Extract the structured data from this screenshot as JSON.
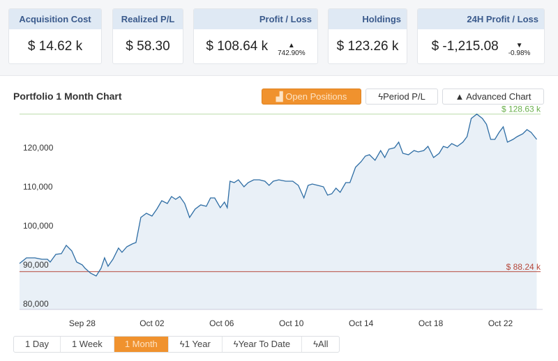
{
  "cards": [
    {
      "title": "Acquisition Cost",
      "value": "$ 14.62 k"
    },
    {
      "title": "Realized P/L",
      "value": "$ 58.30"
    },
    {
      "title": "Profit / Loss",
      "value": "$ 108.64 k",
      "change": "742.90%"
    },
    {
      "title": "Holdings",
      "value": "$ 123.26 k"
    },
    {
      "title": "24H Profit / Loss",
      "value": "$ -1,215.08",
      "change": "-0.98%"
    }
  ],
  "chart_title": "Portfolio 1 Month Chart",
  "view_buttons": {
    "open_positions": "Open Positions",
    "period_pl": "Period P/L",
    "advanced": "Advanced Chart"
  },
  "ranges": [
    "1 Day",
    "1 Week",
    "1 Month",
    "1 Year",
    "Year To Date",
    "All"
  ],
  "selected_range": "1 Month",
  "colors": {
    "accent": "#f0922e",
    "line": "#2e6da4",
    "fill": "#e9f0f7",
    "max": "#6ab04c",
    "min": "#b5473a"
  },
  "chart_data": {
    "type": "area",
    "x_unit": "days since Sep 24",
    "xticks": [
      {
        "x": 4,
        "label": "Sep 28"
      },
      {
        "x": 8,
        "label": "Oct 02"
      },
      {
        "x": 12,
        "label": "Oct 06"
      },
      {
        "x": 16,
        "label": "Oct 10"
      },
      {
        "x": 20,
        "label": "Oct 14"
      },
      {
        "x": 24,
        "label": "Oct 18"
      },
      {
        "x": 28,
        "label": "Oct 22"
      }
    ],
    "yticks": [
      {
        "y": 80000,
        "label": "80,000"
      },
      {
        "y": 90000,
        "label": "90,000"
      },
      {
        "y": 100000,
        "label": "100,000"
      },
      {
        "y": 110000,
        "label": "110,000"
      },
      {
        "y": 120000,
        "label": "120,000"
      }
    ],
    "ylim": [
      78560,
      129290
    ],
    "xlim": [
      0.4,
      30.1
    ],
    "max": {
      "value": 128630,
      "label": "$ 128.63 k"
    },
    "min": {
      "value": 88240,
      "label": "$ 88.24 k"
    },
    "x": [
      0.4,
      0.8,
      1.28,
      1.68,
      2.0,
      2.16,
      2.48,
      2.8,
      3.08,
      3.4,
      3.68,
      4.0,
      4.16,
      4.48,
      4.8,
      5.08,
      5.28,
      5.48,
      5.76,
      6.08,
      6.28,
      6.56,
      6.88,
      7.08,
      7.36,
      7.68,
      8.0,
      8.28,
      8.56,
      8.88,
      9.12,
      9.36,
      9.6,
      9.88,
      10.16,
      10.48,
      10.8,
      11.12,
      11.36,
      11.6,
      11.92,
      12.16,
      12.32,
      12.48,
      12.72,
      12.96,
      13.28,
      13.52,
      13.84,
      14.16,
      14.48,
      14.72,
      14.96,
      15.28,
      15.68,
      16.08,
      16.4,
      16.72,
      16.96,
      17.2,
      17.52,
      17.84,
      18.08,
      18.32,
      18.56,
      18.8,
      19.12,
      19.36,
      19.68,
      20.0,
      20.24,
      20.48,
      20.8,
      21.12,
      21.36,
      21.6,
      21.92,
      22.16,
      22.4,
      22.72,
      23.04,
      23.28,
      23.6,
      23.84,
      24.16,
      24.48,
      24.72,
      24.96,
      25.2,
      25.52,
      25.84,
      26.08,
      26.32,
      26.64,
      26.96,
      27.2,
      27.44,
      27.68,
      27.92,
      28.16,
      28.4,
      28.72,
      28.96,
      29.28,
      29.52,
      29.76,
      30.08
    ],
    "y": [
      90350,
      91780,
      91780,
      91430,
      91430,
      90710,
      92680,
      92860,
      95000,
      93570,
      90710,
      90000,
      89110,
      87850,
      87140,
      89110,
      91780,
      89640,
      91430,
      94290,
      93210,
      94640,
      95360,
      95710,
      102140,
      103210,
      102500,
      104290,
      106430,
      105710,
      107500,
      106790,
      107500,
      105710,
      102140,
      104290,
      105360,
      105000,
      107140,
      107140,
      104640,
      106070,
      104640,
      111430,
      111070,
      111790,
      110000,
      111070,
      111790,
      111790,
      111430,
      110360,
      111430,
      111790,
      111430,
      111430,
      110360,
      107140,
      110360,
      110710,
      110360,
      110000,
      107860,
      108210,
      109640,
      108570,
      111070,
      111070,
      115000,
      116430,
      117860,
      118210,
      116790,
      119290,
      117500,
      119640,
      120000,
      121430,
      118570,
      118210,
      119290,
      118930,
      119290,
      120360,
      117500,
      118570,
      120360,
      120000,
      121070,
      120360,
      121430,
      122860,
      127500,
      128630,
      127500,
      126000,
      122140,
      122140,
      123930,
      125360,
      121430,
      122140,
      122860,
      123570,
      124640,
      123930,
      122140
    ]
  }
}
